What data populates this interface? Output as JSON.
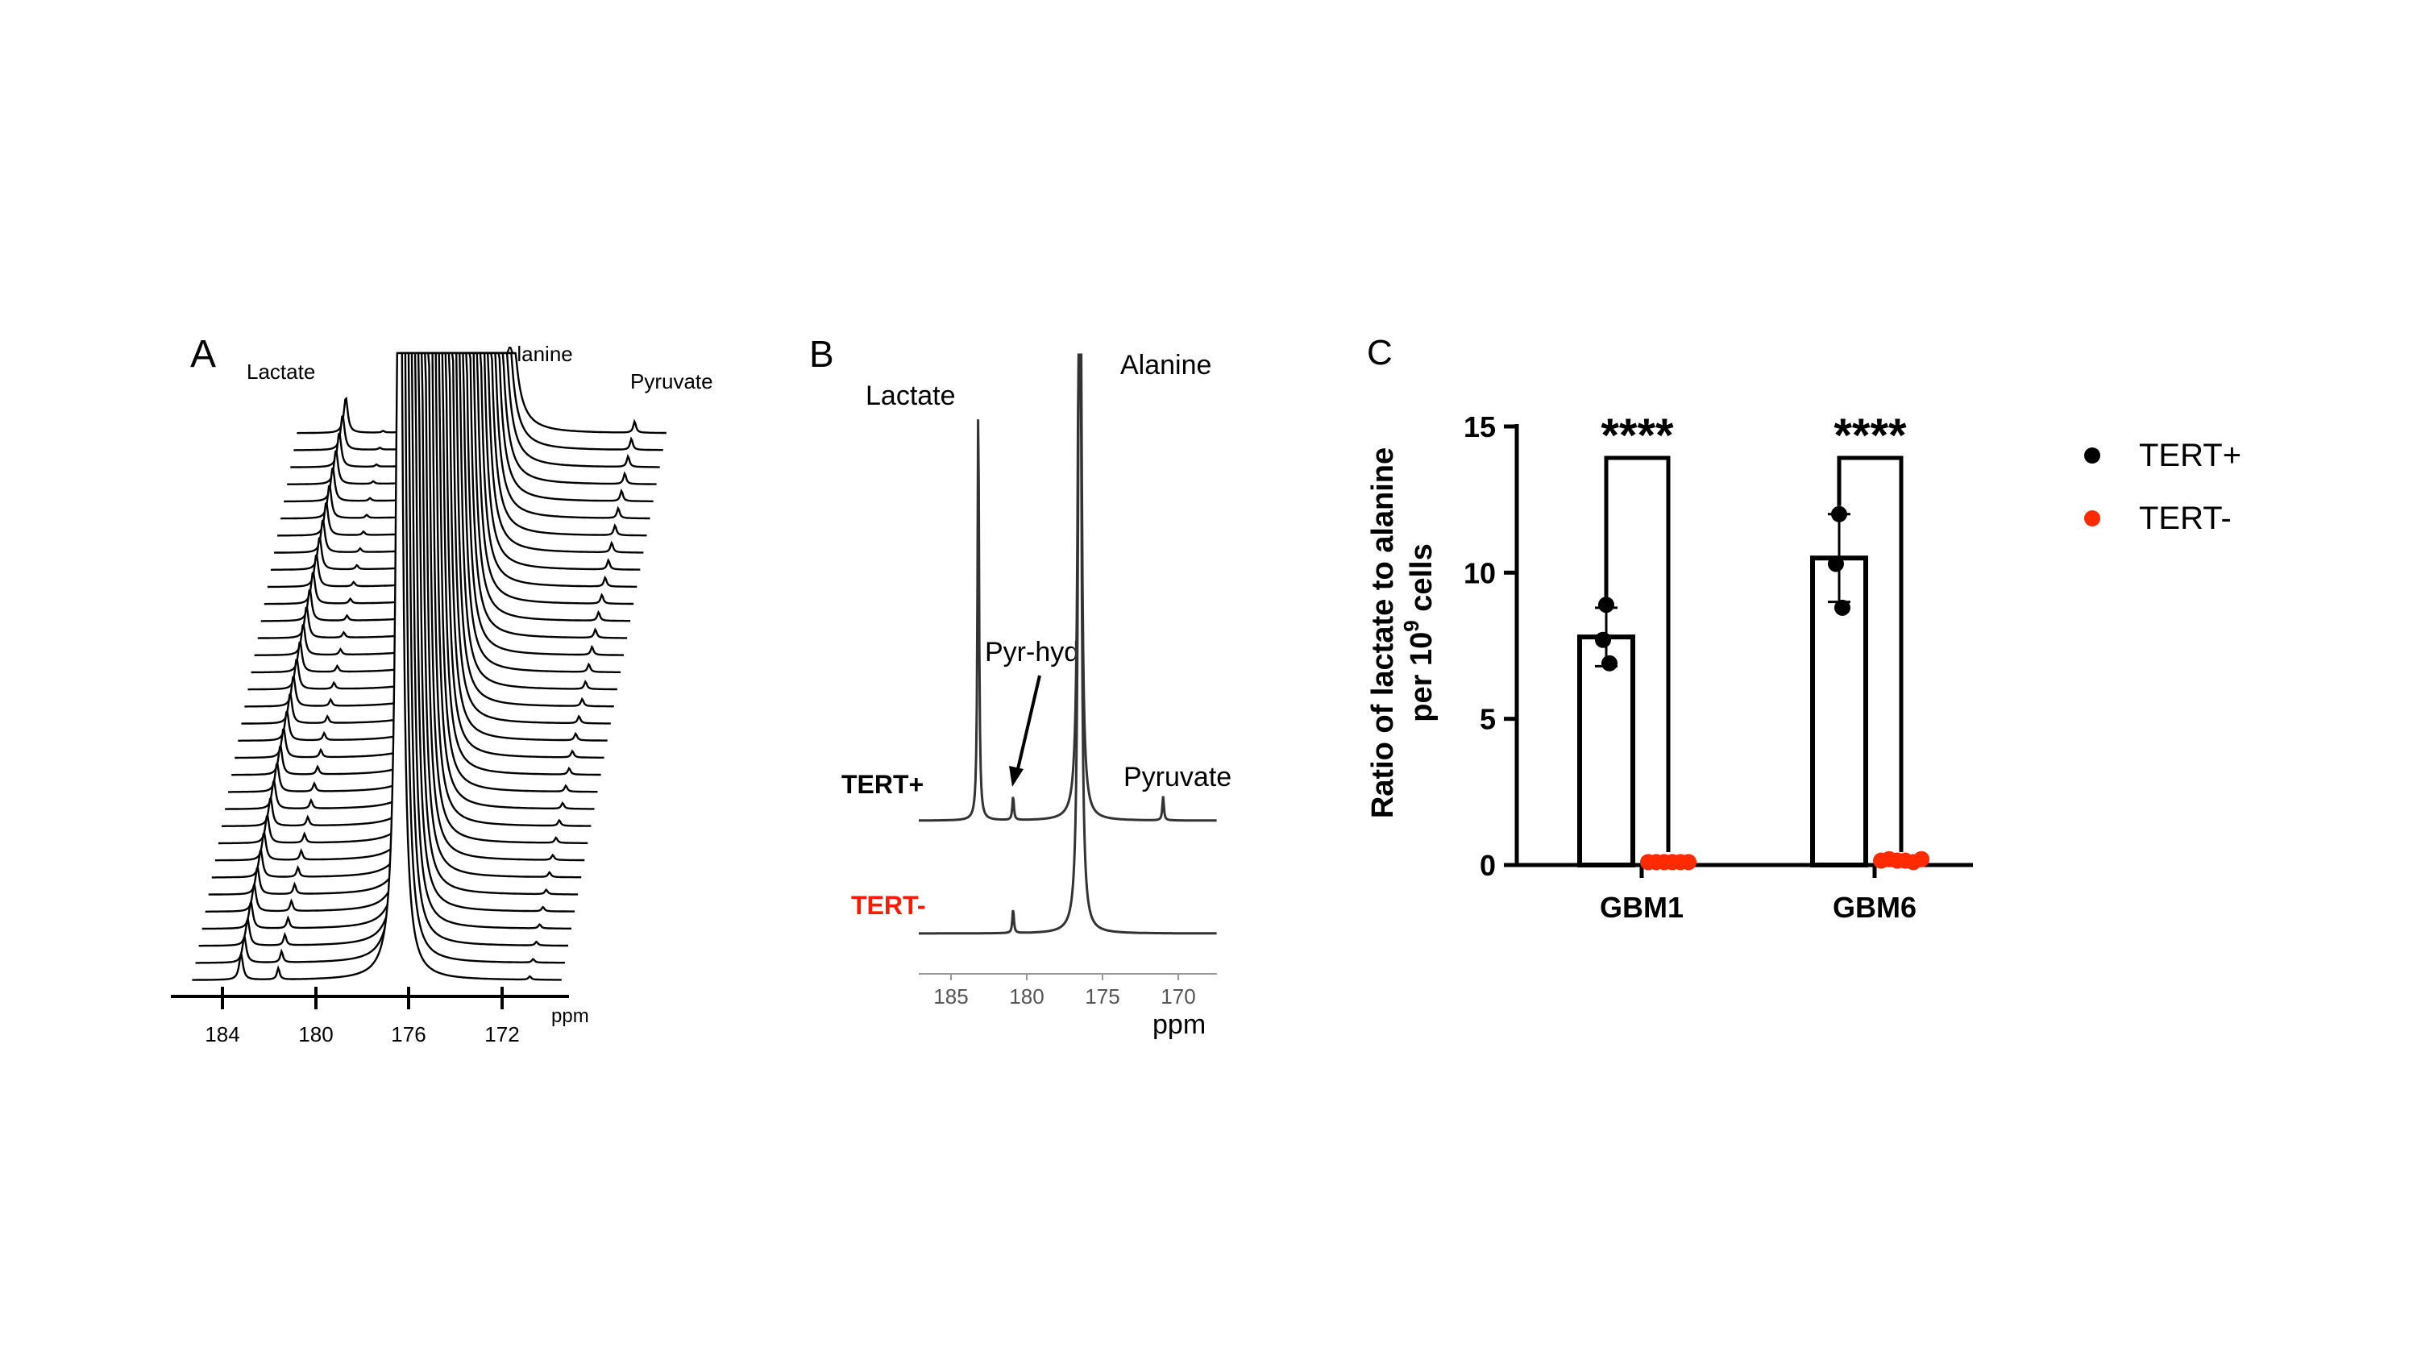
{
  "panels": {
    "A": {
      "label": "A",
      "peak_labels": {
        "lactate": "Lactate",
        "alanine": "Alanine",
        "pyruvate": "Pyruvate"
      },
      "axis": {
        "unit": "ppm",
        "ticks": [
          "184",
          "180",
          "176",
          "172"
        ]
      }
    },
    "B": {
      "label": "B",
      "peak_labels": {
        "lactate": "Lactate",
        "alanine": "Alanine",
        "pyr_hyd": "Pyr-hyd",
        "pyruvate": "Pyruvate"
      },
      "trace_labels": {
        "tert_pos": "TERT+",
        "tert_neg": "TERT-"
      },
      "axis": {
        "unit": "ppm",
        "ticks": [
          "185",
          "180",
          "175",
          "170"
        ]
      }
    },
    "C": {
      "label": "C",
      "ylabel_line1": "Ratio of lactate to alanine",
      "ylabel_line2_pre": "per 10",
      "ylabel_line2_sup": "9",
      "ylabel_line2_post": " cells",
      "significance": [
        "****",
        "****"
      ]
    }
  },
  "colors": {
    "tert_pos": "#000000",
    "tert_neg": "#ff2a00",
    "trace": "#000000",
    "trace_b": "#333333"
  },
  "chart_data": [
    {
      "type": "line",
      "panel": "A",
      "description_series": "stacked 13C NMR spectra",
      "x_unit": "ppm",
      "xlim": [
        186,
        170.5
      ],
      "peaks_ppm": {
        "Lactate": 183.2,
        "Pyr-hyd": 181.6,
        "Alanine": 176.4,
        "Pyruvate": 170.8
      },
      "n_spectra": 33
    },
    {
      "type": "line",
      "panel": "B",
      "x_unit": "ppm",
      "xlim": [
        187.5,
        168
      ],
      "peaks_ppm": {
        "Lactate": 183.2,
        "Pyr-hyd": 180.9,
        "Alanine": 176.5,
        "Pyruvate": 171.0
      },
      "series": [
        {
          "name": "TERT+",
          "peaks": {
            "Lactate": 1.0,
            "Pyr-hyd": 0.06,
            "Alanine": 1.2,
            "Pyruvate": 0.06
          }
        },
        {
          "name": "TERT-",
          "peaks": {
            "Lactate": 0.0,
            "Pyr-hyd": 0.06,
            "Alanine": 1.2,
            "Pyruvate": 0.0
          }
        }
      ]
    },
    {
      "type": "bar",
      "panel": "C",
      "categories": [
        "GBM1",
        "GBM6"
      ],
      "ylim": [
        0,
        15
      ],
      "yticks": [
        "0",
        "5",
        "10",
        "15"
      ],
      "legend": [
        "TERT+",
        "TERT-"
      ],
      "legend_position": "right",
      "series": [
        {
          "name": "TERT+",
          "values": [
            7.8,
            10.5
          ],
          "error": [
            1.0,
            1.5
          ],
          "points": [
            [
              8.9,
              7.7,
              6.9
            ],
            [
              12.0,
              10.3,
              8.8
            ]
          ]
        },
        {
          "name": "TERT-",
          "values": [
            0.1,
            0.15
          ],
          "error": [
            0,
            0
          ],
          "points": [
            [
              0.1,
              0.1,
              0.1,
              0.1,
              0.1,
              0.1
            ],
            [
              0.15,
              0.2,
              0.15,
              0.15,
              0.1,
              0.2
            ]
          ]
        }
      ]
    }
  ]
}
